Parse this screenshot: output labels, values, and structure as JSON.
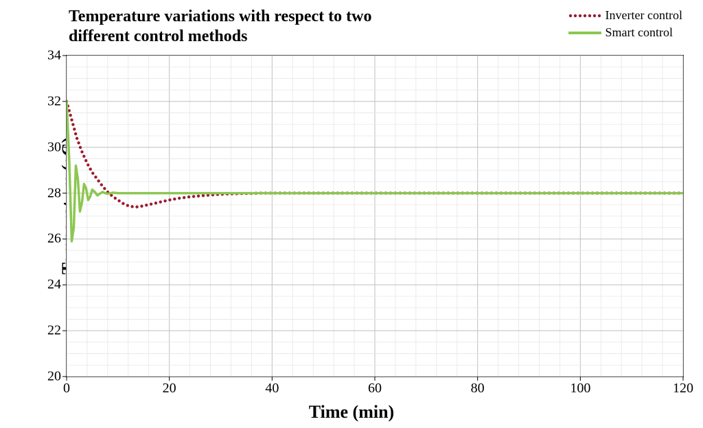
{
  "chart": {
    "type": "line",
    "title": "Temperature variations with respect to two different control methods",
    "title_fontsize": 24,
    "title_fontweight": "bold",
    "xlabel": "Time (min)",
    "ylabel": "Temperature (oC)",
    "label_fontsize": 26,
    "label_fontweight": "bold",
    "tick_fontsize": 20,
    "xlim": [
      0,
      120
    ],
    "ylim": [
      20,
      34
    ],
    "xtick_step_major": 20,
    "xtick_step_minor": 4,
    "ytick_step_major": 2,
    "ytick_step_minor": 0.5,
    "background_color": "#ffffff",
    "grid_color_major": "#bfbfbf",
    "grid_color_minor": "#e6e6e6",
    "border_color": "#000000",
    "legend": {
      "position": "top-right",
      "fontsize": 18,
      "items": [
        {
          "label": "Inverter control",
          "style": "dotted",
          "color": "#9b1b30"
        },
        {
          "label": "Smart control",
          "style": "solid",
          "color": "#8cc751"
        }
      ]
    },
    "series": [
      {
        "name": "Inverter control",
        "color": "#9b1b30",
        "style": "dotted",
        "line_width": 3,
        "dot_radius": 2.2,
        "dot_spacing_px": 7,
        "data": [
          [
            0,
            32.0
          ],
          [
            1,
            31.2
          ],
          [
            2,
            30.4
          ],
          [
            3,
            29.8
          ],
          [
            4,
            29.3
          ],
          [
            5,
            28.9
          ],
          [
            6,
            28.6
          ],
          [
            7,
            28.3
          ],
          [
            8,
            28.05
          ],
          [
            9,
            27.85
          ],
          [
            10,
            27.7
          ],
          [
            11,
            27.55
          ],
          [
            12,
            27.45
          ],
          [
            13,
            27.4
          ],
          [
            14,
            27.4
          ],
          [
            15,
            27.45
          ],
          [
            16,
            27.5
          ],
          [
            17,
            27.55
          ],
          [
            18,
            27.6
          ],
          [
            19,
            27.65
          ],
          [
            20,
            27.7
          ],
          [
            22,
            27.78
          ],
          [
            24,
            27.84
          ],
          [
            26,
            27.88
          ],
          [
            28,
            27.92
          ],
          [
            30,
            27.95
          ],
          [
            32,
            27.97
          ],
          [
            34,
            27.98
          ],
          [
            36,
            27.99
          ],
          [
            38,
            28.0
          ],
          [
            40,
            28.0
          ],
          [
            50,
            28.0
          ],
          [
            60,
            28.0
          ],
          [
            70,
            28.0
          ],
          [
            80,
            28.0
          ],
          [
            90,
            28.0
          ],
          [
            100,
            28.0
          ],
          [
            110,
            28.0
          ],
          [
            120,
            28.0
          ]
        ]
      },
      {
        "name": "Smart control",
        "color": "#8cc751",
        "style": "solid",
        "line_width": 3.5,
        "data": [
          [
            0,
            32.0
          ],
          [
            0.5,
            29.5
          ],
          [
            1.0,
            25.9
          ],
          [
            1.4,
            26.5
          ],
          [
            1.8,
            29.2
          ],
          [
            2.2,
            28.6
          ],
          [
            2.6,
            27.2
          ],
          [
            3.0,
            27.6
          ],
          [
            3.4,
            28.4
          ],
          [
            3.8,
            28.2
          ],
          [
            4.2,
            27.7
          ],
          [
            4.6,
            27.85
          ],
          [
            5.0,
            28.15
          ],
          [
            5.5,
            28.05
          ],
          [
            6.0,
            27.9
          ],
          [
            6.5,
            27.98
          ],
          [
            7.0,
            28.05
          ],
          [
            7.5,
            28.0
          ],
          [
            8,
            27.97
          ],
          [
            9,
            28.02
          ],
          [
            10,
            28.0
          ],
          [
            12,
            28.0
          ],
          [
            15,
            28.0
          ],
          [
            20,
            28.0
          ],
          [
            30,
            28.0
          ],
          [
            40,
            28.0
          ],
          [
            60,
            28.0
          ],
          [
            80,
            28.0
          ],
          [
            100,
            28.0
          ],
          [
            120,
            28.0
          ]
        ]
      }
    ]
  }
}
